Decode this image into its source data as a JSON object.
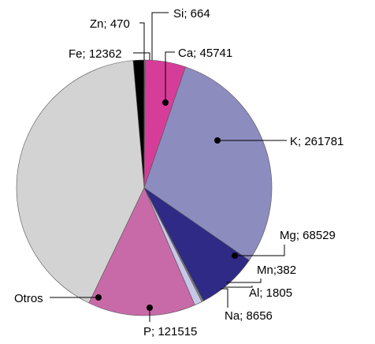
{
  "chart_data": {
    "type": "pie",
    "title": "",
    "slices": [
      {
        "label": "Fe; 12362",
        "element": "Fe",
        "value": 12362,
        "color": "#000000"
      },
      {
        "label": "Zn; 470",
        "element": "Zn",
        "value": 470,
        "color": "#ffffff"
      },
      {
        "label": "Si; 664",
        "element": "Si",
        "value": 664,
        "color": "#ffffff"
      },
      {
        "label": "Ca; 45741",
        "element": "Ca",
        "value": 45741,
        "color": "#d63d99"
      },
      {
        "label": "K; 261781",
        "element": "K",
        "value": 261781,
        "color": "#8c8cbf"
      },
      {
        "label": "Mg; 68529",
        "element": "Mg",
        "value": 68529,
        "color": "#2e2a85"
      },
      {
        "label": "Mn;382",
        "element": "Mn",
        "value": 382,
        "color": "#3b3b3b"
      },
      {
        "label": "Al; 1805",
        "element": "Al",
        "value": 1805,
        "color": "#8a8a8a"
      },
      {
        "label": "Na; 8656",
        "element": "Na",
        "value": 8656,
        "color": "#c7c7e8"
      },
      {
        "label": "P; 121515",
        "element": "P",
        "value": 121515,
        "color": "#c96aa8"
      },
      {
        "label": "Otros",
        "element": "Otros",
        "value": 370000,
        "color": "#d3d3d3"
      }
    ],
    "legend": "none"
  }
}
